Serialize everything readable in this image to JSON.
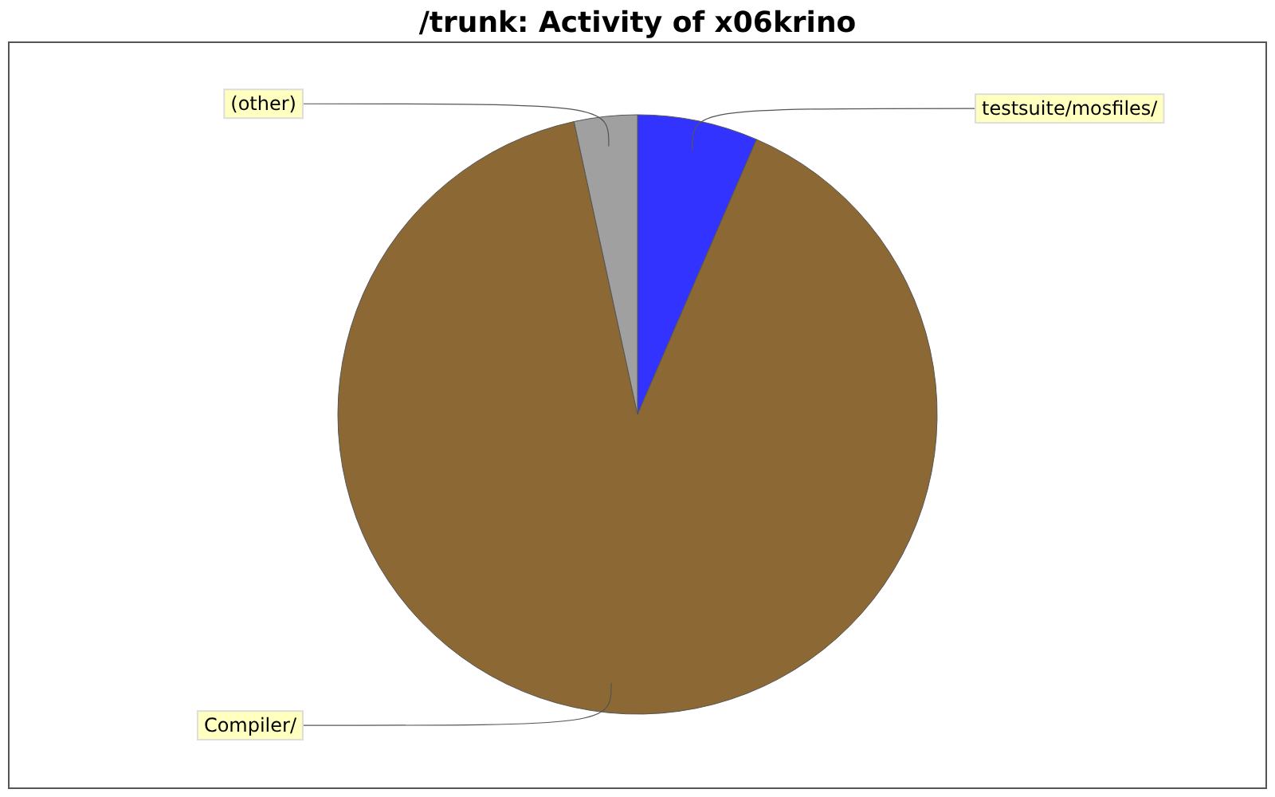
{
  "chart_data": {
    "type": "pie",
    "title": "/trunk: Activity of x06krino",
    "categories": [
      "testsuite/mosfiles/",
      "Compiler/",
      "(other)"
    ],
    "values": [
      6.5,
      90.1,
      3.4
    ],
    "colors": [
      "#3333ff",
      "#8b6834",
      "#a0a0a0"
    ]
  }
}
